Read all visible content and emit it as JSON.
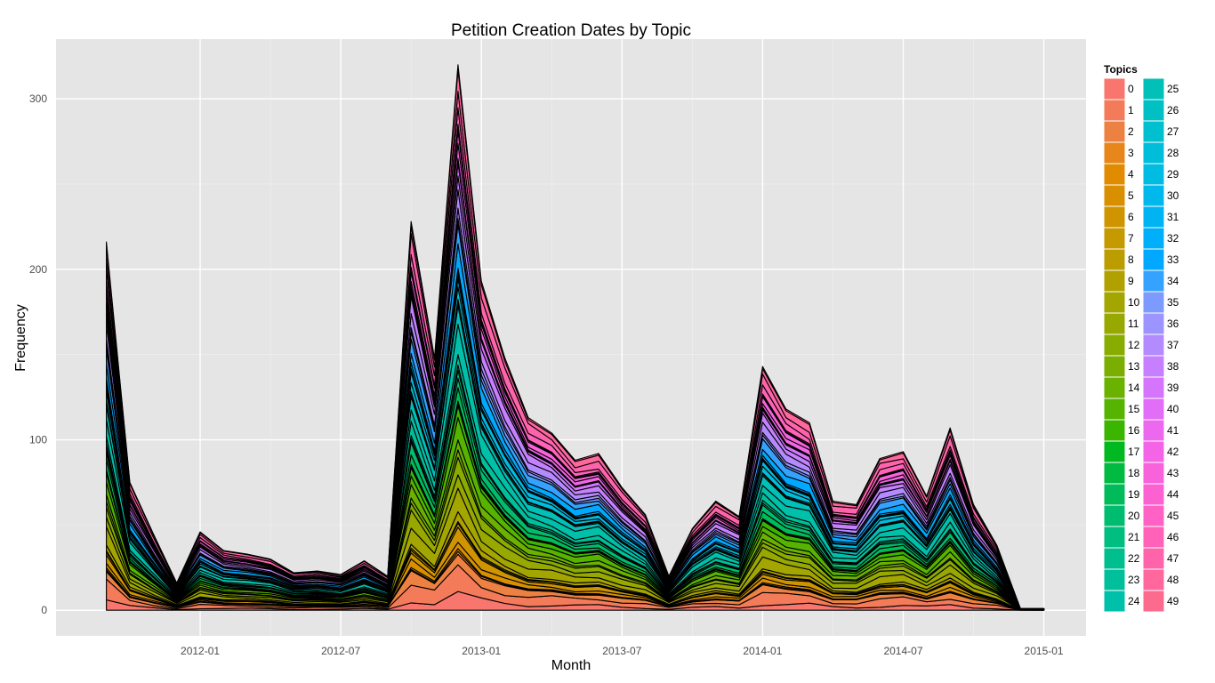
{
  "chart_data": {
    "type": "area",
    "stacked": true,
    "title": "Petition Creation Dates by Topic",
    "xlabel": "Month",
    "ylabel": "Frequency",
    "x_ticks": [
      "2012-01",
      "2012-07",
      "2013-01",
      "2013-07",
      "2014-01",
      "2014-07",
      "2015-01"
    ],
    "y_ticks": [
      "0",
      "100",
      "200",
      "300"
    ],
    "ylim": [
      -15,
      335
    ],
    "xlim": [
      "2011-07",
      "2015-03"
    ],
    "grid": true,
    "background": "#e5e5e5",
    "legend": {
      "title": "Topics",
      "position": "right",
      "columns": 2
    },
    "months": [
      "2011-09",
      "2011-10",
      "2011-11",
      "2011-12",
      "2012-01",
      "2012-02",
      "2012-03",
      "2012-04",
      "2012-05",
      "2012-06",
      "2012-07",
      "2012-08",
      "2012-09",
      "2012-10",
      "2012-11",
      "2012-12",
      "2013-01",
      "2013-02",
      "2013-03",
      "2013-04",
      "2013-05",
      "2013-06",
      "2013-07",
      "2013-08",
      "2013-09",
      "2013-10",
      "2013-11",
      "2013-12",
      "2014-01",
      "2014-02",
      "2014-03",
      "2014-04",
      "2014-05",
      "2014-06",
      "2014-07",
      "2014-08",
      "2014-09",
      "2014-10",
      "2014-11",
      "2014-12",
      "2015-01"
    ],
    "totals": [
      216,
      75,
      45,
      16,
      46,
      35,
      33,
      30,
      22,
      23,
      21,
      29,
      20,
      228,
      148,
      320,
      193,
      148,
      113,
      104,
      88,
      92,
      72,
      56,
      20,
      48,
      64,
      55,
      143,
      118,
      110,
      64,
      62,
      89,
      93,
      67,
      107,
      62,
      38,
      1,
      1
    ],
    "series_names": [
      "0",
      "1",
      "2",
      "3",
      "4",
      "5",
      "6",
      "7",
      "8",
      "9",
      "10",
      "11",
      "12",
      "13",
      "14",
      "15",
      "16",
      "17",
      "18",
      "19",
      "20",
      "21",
      "22",
      "23",
      "24",
      "25",
      "26",
      "27",
      "28",
      "29",
      "30",
      "31",
      "32",
      "33",
      "34",
      "35",
      "36",
      "37",
      "38",
      "39",
      "40",
      "41",
      "42",
      "43",
      "44",
      "45",
      "46",
      "47",
      "48",
      "49"
    ],
    "colors": [
      "#F8766D",
      "#F37B59",
      "#ED8141",
      "#E7861B",
      "#E08B00",
      "#D89000",
      "#CF9400",
      "#C59900",
      "#BB9D00",
      "#B0A100",
      "#A3A500",
      "#97A800",
      "#89AC00",
      "#7AAE00",
      "#6AB100",
      "#56B400",
      "#3BB600",
      "#00B81F",
      "#00BA42",
      "#00BB5A",
      "#00BC6E",
      "#00BE7F",
      "#00BF8E",
      "#00C09C",
      "#00C0AA",
      "#00C0B7",
      "#00C0C3",
      "#00BFCE",
      "#00BDD9",
      "#00BBE2",
      "#00B8EB",
      "#00B4F3",
      "#00AFF9",
      "#00A9FF",
      "#35A2FF",
      "#7D9AFF",
      "#9C94FF",
      "#B38BFF",
      "#C680FF",
      "#D575FE",
      "#E26EF7",
      "#EC69EF",
      "#F365E6",
      "#F863DC",
      "#FC61D1",
      "#FF61C5",
      "#FF62B8",
      "#FF64AB",
      "#FF679D",
      "#FC6A8E"
    ]
  }
}
